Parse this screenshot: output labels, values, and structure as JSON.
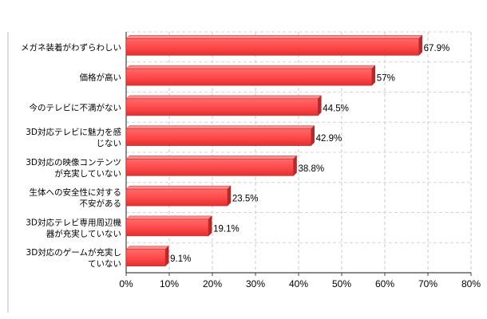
{
  "chart_data": {
    "type": "bar",
    "orientation": "horizontal",
    "title": "",
    "xlabel": "",
    "ylabel": "",
    "categories": [
      [
        "メガネ装着がわずらわしい"
      ],
      [
        "価格が高い"
      ],
      [
        "今のテレビに不満がない"
      ],
      [
        "3D対応テレビに魅力を感",
        "じない"
      ],
      [
        "3D対応の映像コンテンツ",
        "が充実していない"
      ],
      [
        "生体への安全性に対する",
        "不安がある"
      ],
      [
        "3D対応テレビ専用周辺機",
        "器が充実していない"
      ],
      [
        "3D対応のゲームが充実し",
        "ていない"
      ]
    ],
    "values": [
      67.9,
      57,
      44.5,
      42.9,
      38.8,
      23.5,
      19.1,
      9.1
    ],
    "value_labels": [
      "67.9%",
      "57%",
      "44.5%",
      "42.9%",
      "38.8%",
      "23.5%",
      "19.1%",
      "9.1%"
    ],
    "xlim": [
      0,
      80
    ],
    "ticks": [
      "0%",
      "10%",
      "20%",
      "30%",
      "40%",
      "50%",
      "60%",
      "70%",
      "80%"
    ],
    "grid": true,
    "bar_color": "#ff4a4a"
  }
}
